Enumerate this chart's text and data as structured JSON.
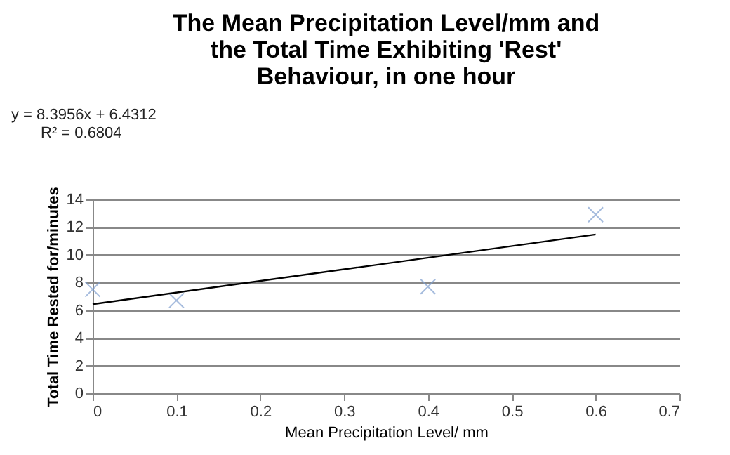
{
  "chart_data": {
    "type": "scatter",
    "title": "The Mean Precipitation Level/mm and\nthe Total Time Exhibiting 'Rest'\nBehaviour, in one hour",
    "xlabel": "Mean Precipitation Level/ mm",
    "ylabel": "Total Time  Rested for/minutes",
    "series": [
      {
        "color": "#7f9fcf",
        "x": [
          0,
          0.1,
          0.4,
          0.6
        ],
        "values": [
          7.5,
          6.7,
          7.7,
          12.9
        ],
        "marker": "cross"
      },
      {
        "type": "line",
        "color": "#000000",
        "x": [
          0,
          0.6
        ],
        "values": [
          6.43,
          11.47
        ],
        "marker": "none"
      }
    ],
    "annotations": [
      "y = 8.3956x + 6.4312",
      "R² = 0.6804"
    ],
    "xlim": [
      0,
      0.7
    ],
    "xticks": [
      0,
      0.1,
      0.2,
      0.3,
      0.4,
      0.5,
      0.6,
      0.7
    ],
    "ylim": [
      0,
      14
    ],
    "yticks": [
      0,
      2,
      4,
      6,
      8,
      10,
      12,
      14
    ],
    "grid": "y",
    "legend": false
  }
}
